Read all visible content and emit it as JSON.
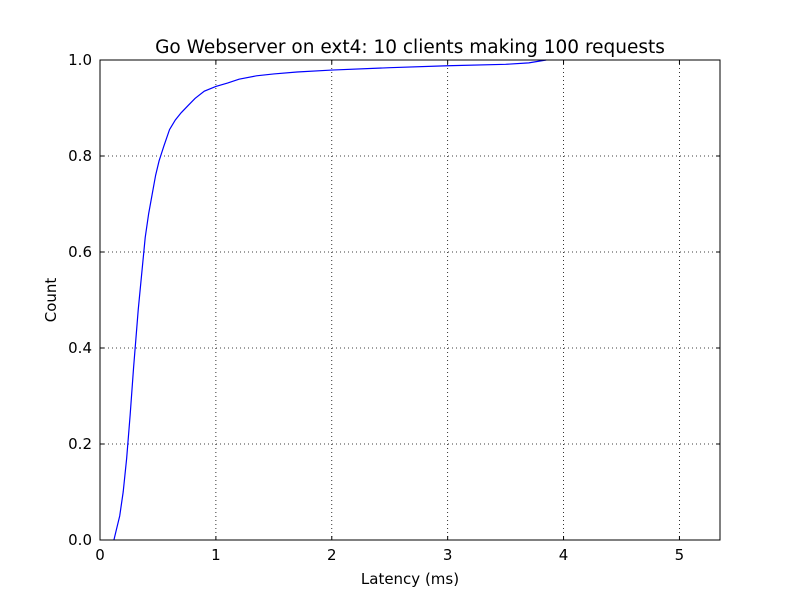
{
  "chart_data": {
    "type": "line",
    "title": "Go Webserver on ext4: 10 clients making 100 requests",
    "xlabel": "Latency (ms)",
    "ylabel": "Count",
    "xlim": [
      0,
      5.35
    ],
    "ylim": [
      0,
      1.0
    ],
    "xticks": [
      0,
      1,
      2,
      3,
      4,
      5
    ],
    "yticks": [
      0.0,
      0.2,
      0.4,
      0.6,
      0.8,
      1.0
    ],
    "xtick_labels": [
      "0",
      "1",
      "2",
      "3",
      "4",
      "5"
    ],
    "ytick_labels": [
      "0.0",
      "0.2",
      "0.4",
      "0.6",
      "0.8",
      "1.0"
    ],
    "grid": true,
    "color": "#0000ff",
    "series": [
      {
        "x": [
          0.12,
          0.14,
          0.17,
          0.2,
          0.23,
          0.26,
          0.29,
          0.31,
          0.33,
          0.35,
          0.37,
          0.39,
          0.42,
          0.45,
          0.48,
          0.51,
          0.55,
          0.6,
          0.65,
          0.7,
          0.76,
          0.82,
          0.9,
          1.0,
          1.1,
          1.2,
          1.35,
          1.5,
          1.7,
          2.0,
          2.5,
          3.0,
          3.5,
          3.7,
          3.85
        ],
        "y": [
          0.0,
          0.02,
          0.05,
          0.1,
          0.17,
          0.26,
          0.36,
          0.42,
          0.48,
          0.53,
          0.58,
          0.63,
          0.68,
          0.72,
          0.76,
          0.79,
          0.82,
          0.855,
          0.875,
          0.89,
          0.905,
          0.92,
          0.935,
          0.945,
          0.952,
          0.96,
          0.967,
          0.971,
          0.975,
          0.979,
          0.984,
          0.988,
          0.991,
          0.994,
          1.0
        ]
      }
    ]
  }
}
